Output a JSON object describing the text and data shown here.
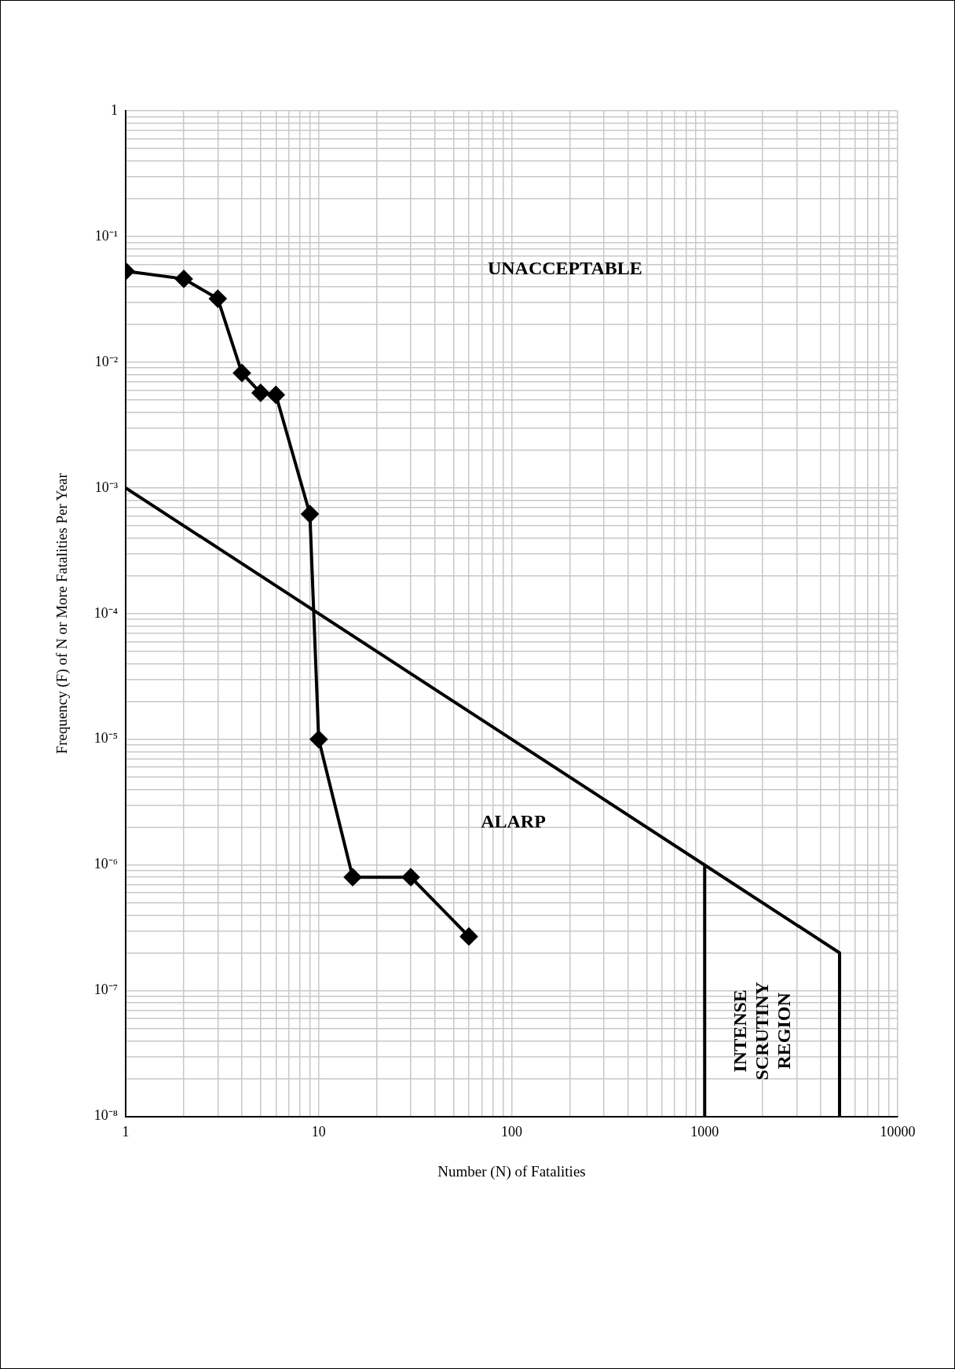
{
  "chart_data": {
    "type": "line",
    "xlabel": "Number (N) of Fatalities",
    "ylabel": "Frequency (F) of N or More Fatalities Per Year",
    "log": "xy",
    "grid": true,
    "legend": false,
    "xlim": [
      1,
      10000
    ],
    "ylim": [
      1e-08,
      1
    ],
    "xticks": [
      1,
      {
        "value": 2,
        "label": null
      },
      {
        "value": 3,
        "label": null
      },
      {
        "value": 4,
        "label": null
      },
      {
        "value": 5,
        "label": null
      },
      {
        "value": 6,
        "label": null
      },
      {
        "value": 7,
        "label": null
      },
      {
        "value": 8,
        "label": null
      },
      {
        "value": 9,
        "label": null
      },
      10,
      {
        "value": 20,
        "label": null
      },
      {
        "value": 30,
        "label": null
      },
      {
        "value": 40,
        "label": null
      },
      {
        "value": 50,
        "label": null
      },
      {
        "value": 60,
        "label": null
      },
      {
        "value": 70,
        "label": null
      },
      {
        "value": 80,
        "label": null
      },
      {
        "value": 90,
        "label": null
      },
      100,
      {
        "value": 200,
        "label": null
      },
      {
        "value": 300,
        "label": null
      },
      {
        "value": 400,
        "label": null
      },
      {
        "value": 500,
        "label": null
      },
      {
        "value": 600,
        "label": null
      },
      {
        "value": 700,
        "label": null
      },
      {
        "value": 800,
        "label": null
      },
      {
        "value": 900,
        "label": null
      },
      1000,
      {
        "value": 2000,
        "label": null
      },
      {
        "value": 3000,
        "label": null
      },
      {
        "value": 4000,
        "label": null
      },
      {
        "value": 5000,
        "label": null
      },
      {
        "value": 6000,
        "label": null
      },
      {
        "value": 7000,
        "label": null
      },
      {
        "value": 8000,
        "label": null
      },
      {
        "value": 9000,
        "label": null
      },
      10000
    ],
    "yticks": [
      {
        "value": 1e-08,
        "label": "10⁻⁸"
      },
      {
        "value": 2e-08,
        "label": null
      },
      {
        "value": 3e-08,
        "label": null
      },
      {
        "value": 4e-08,
        "label": null
      },
      {
        "value": 5e-08,
        "label": null
      },
      {
        "value": 6e-08,
        "label": null
      },
      {
        "value": 7e-08,
        "label": null
      },
      {
        "value": 8e-08,
        "label": null
      },
      {
        "value": 9e-08,
        "label": null
      },
      {
        "value": 1e-07,
        "label": "10⁻⁷"
      },
      {
        "value": 2e-07,
        "label": null
      },
      {
        "value": 3e-07,
        "label": null
      },
      {
        "value": 4e-07,
        "label": null
      },
      {
        "value": 5e-07,
        "label": null
      },
      {
        "value": 6e-07,
        "label": null
      },
      {
        "value": 7e-07,
        "label": null
      },
      {
        "value": 8e-07,
        "label": null
      },
      {
        "value": 9e-07,
        "label": null
      },
      {
        "value": 1e-06,
        "label": "10⁻⁶"
      },
      {
        "value": 2e-06,
        "label": null
      },
      {
        "value": 3e-06,
        "label": null
      },
      {
        "value": 4e-06,
        "label": null
      },
      {
        "value": 5e-06,
        "label": null
      },
      {
        "value": 6e-06,
        "label": null
      },
      {
        "value": 7e-06,
        "label": null
      },
      {
        "value": 8e-06,
        "label": null
      },
      {
        "value": 9e-06,
        "label": null
      },
      {
        "value": 1e-05,
        "label": "10⁻⁵"
      },
      {
        "value": 2e-05,
        "label": null
      },
      {
        "value": 3e-05,
        "label": null
      },
      {
        "value": 4e-05,
        "label": null
      },
      {
        "value": 5e-05,
        "label": null
      },
      {
        "value": 6e-05,
        "label": null
      },
      {
        "value": 7e-05,
        "label": null
      },
      {
        "value": 8e-05,
        "label": null
      },
      {
        "value": 9e-05,
        "label": null
      },
      {
        "value": 0.0001,
        "label": "10⁻⁴"
      },
      {
        "value": 0.0002,
        "label": null
      },
      {
        "value": 0.0003,
        "label": null
      },
      {
        "value": 0.0004,
        "label": null
      },
      {
        "value": 0.0005,
        "label": null
      },
      {
        "value": 0.0006,
        "label": null
      },
      {
        "value": 0.0007,
        "label": null
      },
      {
        "value": 0.0008,
        "label": null
      },
      {
        "value": 0.0009,
        "label": null
      },
      {
        "value": 0.001,
        "label": "10⁻³"
      },
      {
        "value": 0.002,
        "label": null
      },
      {
        "value": 0.003,
        "label": null
      },
      {
        "value": 0.004,
        "label": null
      },
      {
        "value": 0.005,
        "label": null
      },
      {
        "value": 0.006,
        "label": null
      },
      {
        "value": 0.007,
        "label": null
      },
      {
        "value": 0.008,
        "label": null
      },
      {
        "value": 0.009,
        "label": null
      },
      {
        "value": 0.01,
        "label": "10⁻²"
      },
      {
        "value": 0.02,
        "label": null
      },
      {
        "value": 0.03,
        "label": null
      },
      {
        "value": 0.04,
        "label": null
      },
      {
        "value": 0.05,
        "label": null
      },
      {
        "value": 0.06,
        "label": null
      },
      {
        "value": 0.07,
        "label": null
      },
      {
        "value": 0.08,
        "label": null
      },
      {
        "value": 0.09,
        "label": null
      },
      {
        "value": 0.1,
        "label": "10⁻¹"
      },
      {
        "value": 0.2,
        "label": null
      },
      {
        "value": 0.3,
        "label": null
      },
      {
        "value": 0.4,
        "label": null
      },
      {
        "value": 0.5,
        "label": null
      },
      {
        "value": 0.6,
        "label": null
      },
      {
        "value": 0.7,
        "label": null
      },
      {
        "value": 0.8,
        "label": null
      },
      {
        "value": 0.9,
        "label": null
      },
      1
    ],
    "series": [
      {
        "color": "#000000",
        "marker": "diamond",
        "x": [
          1,
          2,
          3,
          4,
          5,
          6,
          9,
          10,
          15,
          30,
          60
        ],
        "values": [
          0.053,
          0.046,
          0.032,
          0.0082,
          0.0057,
          0.0055,
          0.00062,
          1e-05,
          8e-07,
          8e-07,
          2.7e-07
        ]
      },
      {
        "color": "#000000",
        "marker": "none",
        "x": [
          1,
          1000,
          5000,
          5000
        ],
        "values": [
          0.001,
          1e-06,
          2e-07,
          1e-08
        ]
      },
      {
        "color": "#000000",
        "marker": "none",
        "x": [
          1000,
          1000
        ],
        "values": [
          1e-06,
          1e-08
        ]
      }
    ],
    "annotations": [
      "UNACCEPTABLE",
      "ALARP",
      "INTENSE SCRUTINY REGION"
    ]
  }
}
